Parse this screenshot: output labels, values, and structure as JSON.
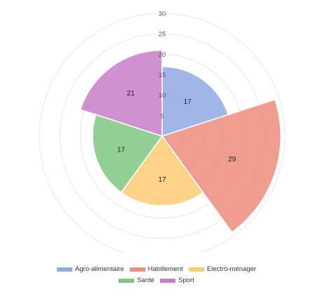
{
  "chart_data": {
    "type": "polar-area",
    "r_max": 30,
    "r_ticks": [
      5,
      10,
      15,
      20,
      25,
      30
    ],
    "grid": true,
    "legend_placement": "bottom",
    "series": [
      {
        "name": "Agro-alimentaire",
        "value": 17,
        "color": "#8fa9e3"
      },
      {
        "name": "Habillement",
        "value": 29,
        "color": "#ec8c7e"
      },
      {
        "name": "Electro-ménager",
        "value": 17,
        "color": "#fdcb74"
      },
      {
        "name": "Santé",
        "value": 17,
        "color": "#7ec782"
      },
      {
        "name": "Sport",
        "value": 21,
        "color": "#c77ec7"
      }
    ]
  }
}
